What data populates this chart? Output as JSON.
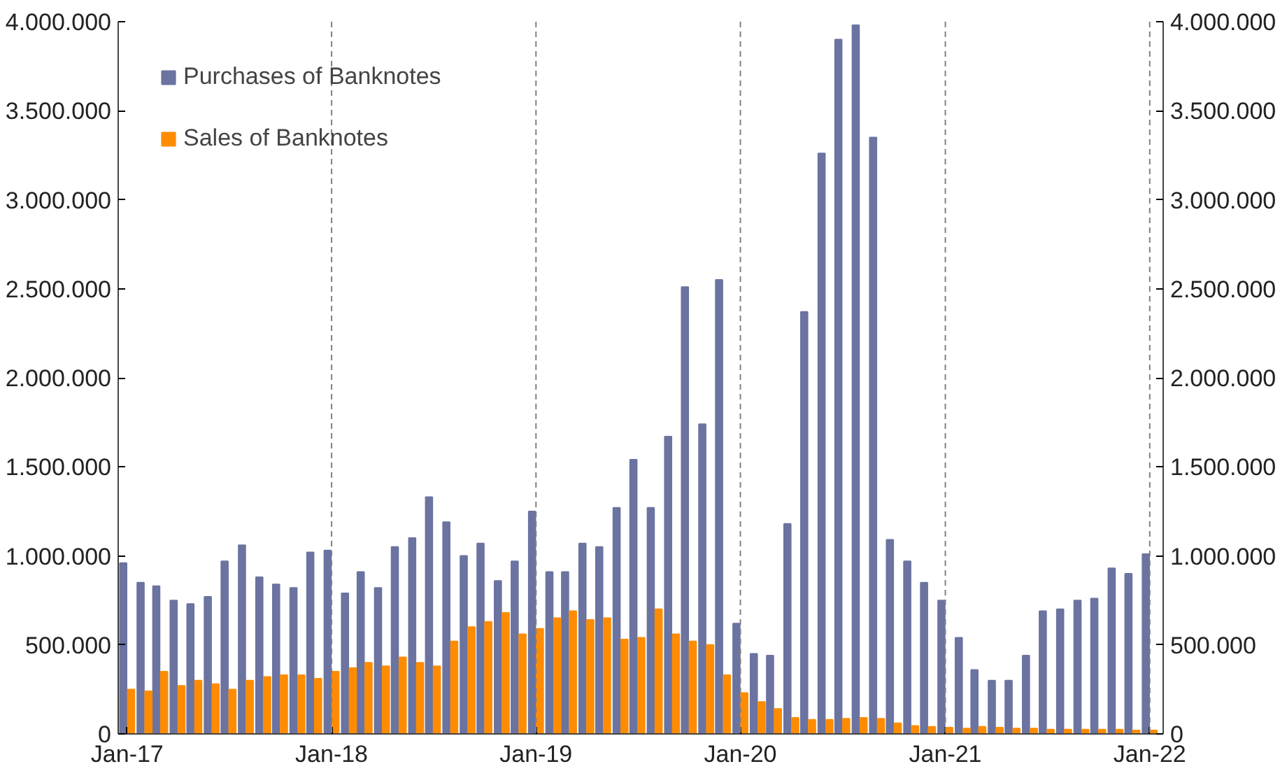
{
  "chart_data": {
    "type": "bar",
    "x": [
      "2017-01",
      "2017-02",
      "2017-03",
      "2017-04",
      "2017-05",
      "2017-06",
      "2017-07",
      "2017-08",
      "2017-09",
      "2017-10",
      "2017-11",
      "2017-12",
      "2018-01",
      "2018-02",
      "2018-03",
      "2018-04",
      "2018-05",
      "2018-06",
      "2018-07",
      "2018-08",
      "2018-09",
      "2018-10",
      "2018-11",
      "2018-12",
      "2019-01",
      "2019-02",
      "2019-03",
      "2019-04",
      "2019-05",
      "2019-06",
      "2019-07",
      "2019-08",
      "2019-09",
      "2019-10",
      "2019-11",
      "2019-12",
      "2020-01",
      "2020-02",
      "2020-03",
      "2020-04",
      "2020-05",
      "2020-06",
      "2020-07",
      "2020-08",
      "2020-09",
      "2020-10",
      "2020-11",
      "2020-12",
      "2021-01",
      "2021-02",
      "2021-03",
      "2021-04",
      "2021-05",
      "2021-06",
      "2021-07",
      "2021-08",
      "2021-09",
      "2021-10",
      "2021-11",
      "2021-12",
      "2022-01"
    ],
    "series": [
      {
        "name": "Purchases of Banknotes",
        "color": "#6b73a0",
        "values": [
          960000,
          850000,
          830000,
          750000,
          730000,
          770000,
          970000,
          1060000,
          880000,
          840000,
          820000,
          1020000,
          1030000,
          790000,
          910000,
          820000,
          1050000,
          1100000,
          1330000,
          1190000,
          1000000,
          1070000,
          860000,
          970000,
          1250000,
          910000,
          910000,
          1070000,
          1050000,
          1270000,
          1540000,
          1270000,
          1670000,
          2510000,
          1740000,
          2550000,
          620000,
          450000,
          440000,
          1180000,
          2370000,
          3260000,
          3900000,
          3980000,
          3350000,
          1090000,
          970000,
          850000,
          750000,
          540000,
          360000,
          300000,
          300000,
          440000,
          690000,
          700000,
          750000,
          760000,
          930000,
          900000,
          1010000
        ]
      },
      {
        "name": "Sales of Banknotes",
        "color": "#ff8c00",
        "values": [
          250000,
          240000,
          350000,
          270000,
          300000,
          280000,
          250000,
          300000,
          320000,
          330000,
          330000,
          310000,
          350000,
          370000,
          400000,
          380000,
          430000,
          400000,
          380000,
          520000,
          600000,
          630000,
          680000,
          560000,
          590000,
          650000,
          690000,
          640000,
          650000,
          530000,
          540000,
          700000,
          560000,
          520000,
          500000,
          330000,
          230000,
          180000,
          140000,
          90000,
          80000,
          80000,
          85000,
          90000,
          85000,
          60000,
          45000,
          40000,
          35000,
          30000,
          40000,
          35000,
          30000,
          30000,
          25000,
          25000,
          25000,
          25000,
          25000,
          20000,
          20000
        ]
      }
    ],
    "xlim": [
      "2016-12-16",
      "2022-01-25"
    ],
    "xticks": [
      {
        "value": "2017-01",
        "label": "Jan-17"
      },
      {
        "value": "2018-01",
        "label": "Jan-18"
      },
      {
        "value": "2019-01",
        "label": "Jan-19"
      },
      {
        "value": "2020-01",
        "label": "Jan-20"
      },
      {
        "value": "2021-01",
        "label": "Jan-21"
      },
      {
        "value": "2022-01",
        "label": "Jan-22"
      }
    ],
    "ylim": [
      0,
      4000000
    ],
    "yticks": [
      {
        "value": 0,
        "label": "0"
      },
      {
        "value": 500000,
        "label": "500.000"
      },
      {
        "value": 1000000,
        "label": "1.000.000"
      },
      {
        "value": 1500000,
        "label": "1.500.000"
      },
      {
        "value": 2000000,
        "label": "2.000.000"
      },
      {
        "value": 2500000,
        "label": "2.500.000"
      },
      {
        "value": 3000000,
        "label": "3.000.000"
      },
      {
        "value": 3500000,
        "label": "3.500.000"
      },
      {
        "value": 4000000,
        "label": "4.000.000"
      }
    ],
    "y2lim": [
      0,
      4000000
    ],
    "y2ticks": [
      {
        "value": 0,
        "label": "0"
      },
      {
        "value": 500000,
        "label": "500.000"
      },
      {
        "value": 1000000,
        "label": "1.000.000"
      },
      {
        "value": 1500000,
        "label": "1.500.000"
      },
      {
        "value": 2000000,
        "label": "2.000.000"
      },
      {
        "value": 2500000,
        "label": "2.500.000"
      },
      {
        "value": 3000000,
        "label": "3.000.000"
      },
      {
        "value": 3500000,
        "label": "3.500.000"
      },
      {
        "value": 4000000,
        "label": "4.000.000"
      }
    ],
    "ref_lines": [
      {
        "axis": "x",
        "value": "2018-01",
        "color": "#808080",
        "line_style": "dashed"
      },
      {
        "axis": "x",
        "value": "2019-01",
        "color": "#808080",
        "line_style": "dashed"
      },
      {
        "axis": "x",
        "value": "2020-01",
        "color": "#808080",
        "line_style": "dashed"
      },
      {
        "axis": "x",
        "value": "2021-01",
        "color": "#808080",
        "line_style": "dashed"
      },
      {
        "axis": "x",
        "value": "2022-01",
        "color": "#808080",
        "line_style": "dashed"
      }
    ],
    "grid": false,
    "legend": "top left"
  }
}
